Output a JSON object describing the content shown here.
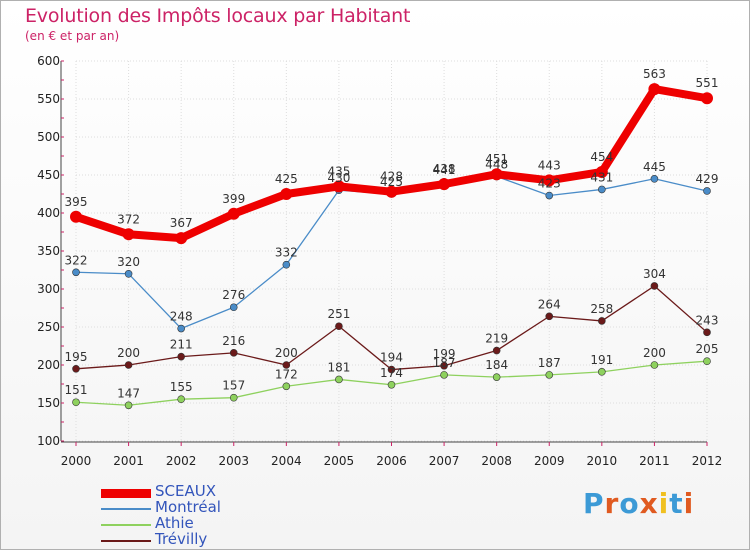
{
  "title": "Evolution des Impôts locaux par Habitant",
  "subtitle": "(en € et par an)",
  "logo": {
    "text": "Proxiti",
    "letter_colors": [
      "#3c9ad6",
      "#e05a20",
      "#3c9ad6",
      "#e05a20",
      "#f0c020",
      "#3c9ad6",
      "#e05a20"
    ]
  },
  "chart_data": {
    "type": "line",
    "x": [
      "2000",
      "2001",
      "2002",
      "2003",
      "2004",
      "2005",
      "2006",
      "2007",
      "2008",
      "2009",
      "2010",
      "2011",
      "2012"
    ],
    "ylim": [
      100,
      600
    ],
    "yticks": [
      100,
      150,
      200,
      250,
      300,
      350,
      400,
      450,
      500,
      550,
      600
    ],
    "grid": "horizontal",
    "legend_position": "bottom-left",
    "series": [
      {
        "name": "SCEAUX",
        "color": "#ee0000",
        "values": [
          395,
          372,
          367,
          399,
          425,
          435,
          428,
          438,
          451,
          443,
          454,
          563,
          551
        ]
      },
      {
        "name": "Montréal",
        "color": "#4a8cc8",
        "values": [
          322,
          320,
          248,
          276,
          332,
          430,
          425,
          441,
          448,
          423,
          431,
          445,
          429
        ]
      },
      {
        "name": "Athie",
        "color": "#8ed15e",
        "values": [
          151,
          147,
          155,
          157,
          172,
          181,
          174,
          187,
          184,
          187,
          191,
          200,
          205
        ]
      },
      {
        "name": "Trévilly",
        "color": "#6b1a1a",
        "values": [
          195,
          200,
          211,
          216,
          200,
          251,
          194,
          199,
          219,
          264,
          258,
          304,
          243
        ]
      }
    ]
  }
}
